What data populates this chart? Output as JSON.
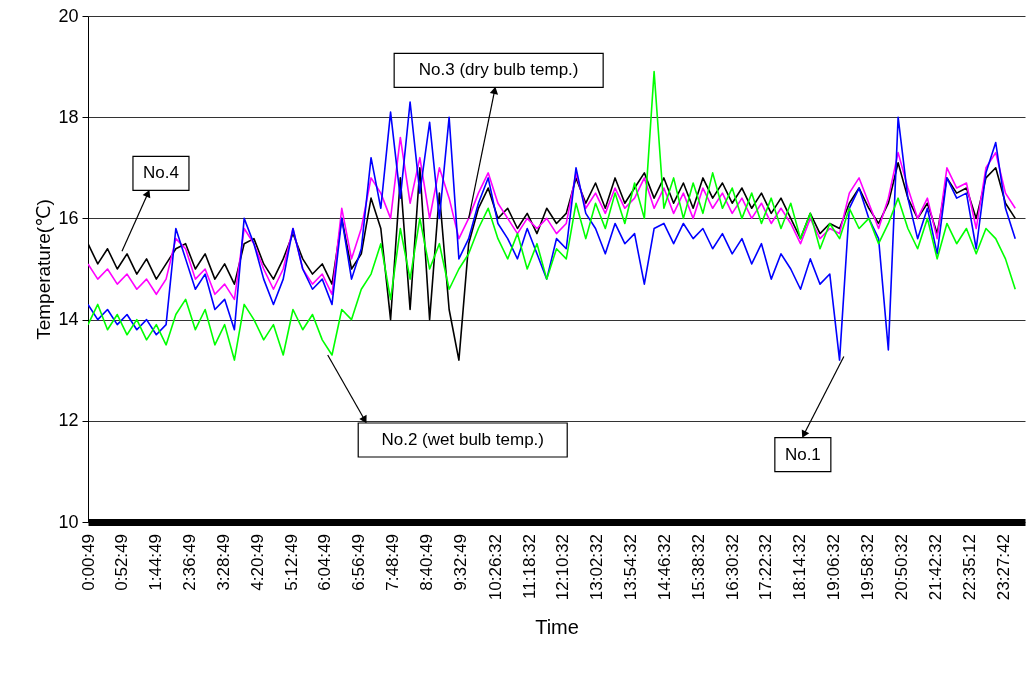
{
  "chart_data": {
    "type": "line",
    "xlabel": "Time",
    "ylabel": "Temperature(℃)",
    "x": [
      0,
      0.25,
      0.5,
      0.75,
      1,
      1.25,
      1.5,
      1.75,
      2,
      2.25,
      2.5,
      2.75,
      3,
      3.25,
      3.5,
      3.75,
      4,
      4.25,
      4.5,
      4.75,
      5,
      5.25,
      5.5,
      5.75,
      6,
      6.25,
      6.5,
      6.75,
      7,
      7.25,
      7.5,
      7.75,
      8,
      8.25,
      8.5,
      8.75,
      9,
      9.25,
      9.5,
      9.75,
      10,
      10.25,
      10.5,
      10.75,
      11,
      11.25,
      11.5,
      11.75,
      12,
      12.25,
      12.5,
      12.75,
      13,
      13.25,
      13.5,
      13.75,
      14,
      14.25,
      14.5,
      14.75,
      15,
      15.25,
      15.5,
      15.75,
      16,
      16.25,
      16.5,
      16.75,
      17,
      17.25,
      17.5,
      17.75,
      18,
      18.25,
      18.5,
      18.75,
      19,
      19.25,
      19.5,
      19.75,
      20,
      20.25,
      20.5,
      20.75,
      21,
      21.25,
      21.5,
      21.75,
      22,
      22.25,
      22.5,
      22.75,
      23,
      23.25,
      23.5,
      23.75
    ],
    "series": [
      {
        "color": "#000000",
        "values": [
          15.5,
          15.1,
          15.4,
          15.0,
          15.3,
          14.9,
          15.2,
          14.8,
          15.1,
          15.4,
          15.5,
          15.0,
          15.3,
          14.8,
          15.1,
          14.7,
          15.5,
          15.6,
          15.1,
          14.8,
          15.2,
          15.7,
          15.2,
          14.9,
          15.1,
          14.7,
          16.0,
          15.0,
          15.3,
          16.4,
          15.8,
          14.0,
          16.8,
          14.2,
          17.0,
          14.0,
          16.5,
          14.2,
          13.2,
          15.5,
          16.2,
          16.6,
          16.0,
          16.2,
          15.8,
          16.1,
          15.7,
          16.2,
          15.9,
          16.1,
          16.8,
          16.3,
          16.7,
          16.2,
          16.8,
          16.3,
          16.6,
          16.9,
          16.4,
          16.8,
          16.3,
          16.7,
          16.2,
          16.8,
          16.4,
          16.7,
          16.3,
          16.6,
          16.2,
          16.5,
          16.1,
          16.4,
          16.0,
          15.6,
          16.1,
          15.7,
          15.9,
          15.8,
          16.3,
          16.6,
          16.2,
          15.9,
          16.3,
          17.1,
          16.4,
          16.0,
          16.3,
          15.7,
          16.8,
          16.5,
          16.6,
          16.0,
          16.8,
          17.0,
          16.3,
          16.0
        ]
      },
      {
        "color": "#ff00ff",
        "values": [
          15.1,
          14.8,
          15.0,
          14.7,
          14.9,
          14.6,
          14.8,
          14.5,
          14.8,
          15.6,
          15.4,
          14.8,
          15.0,
          14.5,
          14.7,
          14.4,
          15.8,
          15.5,
          15.0,
          14.6,
          15.0,
          15.8,
          15.0,
          14.7,
          14.9,
          14.5,
          16.2,
          15.2,
          15.8,
          16.8,
          16.5,
          16.0,
          17.6,
          16.3,
          17.2,
          16.0,
          17.0,
          16.4,
          15.6,
          16.0,
          16.5,
          16.9,
          16.3,
          16.0,
          15.7,
          16.0,
          15.8,
          16.0,
          15.7,
          15.9,
          16.9,
          16.2,
          16.5,
          16.1,
          16.6,
          16.2,
          16.4,
          16.8,
          16.2,
          16.6,
          16.1,
          16.5,
          16.0,
          16.6,
          16.2,
          16.5,
          16.1,
          16.4,
          16.0,
          16.3,
          15.9,
          16.2,
          15.9,
          15.5,
          16.0,
          15.6,
          15.8,
          15.7,
          16.5,
          16.8,
          16.3,
          15.8,
          16.4,
          17.3,
          16.6,
          16.0,
          16.4,
          15.6,
          17.0,
          16.6,
          16.7,
          15.8,
          17.0,
          17.3,
          16.5,
          16.2
        ]
      },
      {
        "color": "#0000ff",
        "values": [
          14.3,
          14.0,
          14.2,
          13.9,
          14.1,
          13.8,
          14.0,
          13.7,
          13.9,
          15.8,
          15.2,
          14.6,
          14.9,
          14.2,
          14.4,
          13.8,
          16.0,
          15.5,
          14.8,
          14.3,
          14.8,
          15.8,
          15.0,
          14.6,
          14.8,
          14.3,
          16.0,
          14.8,
          15.4,
          17.2,
          16.2,
          18.1,
          16.4,
          18.3,
          16.5,
          17.9,
          16.0,
          18.0,
          15.2,
          15.6,
          16.3,
          16.8,
          15.9,
          15.6,
          15.2,
          15.8,
          15.3,
          14.8,
          15.6,
          15.4,
          17.0,
          16.1,
          15.8,
          15.3,
          15.9,
          15.5,
          15.7,
          14.7,
          15.8,
          15.9,
          15.5,
          15.9,
          15.6,
          15.8,
          15.4,
          15.7,
          15.3,
          15.6,
          15.1,
          15.5,
          14.8,
          15.3,
          15.0,
          14.6,
          15.2,
          14.7,
          14.9,
          13.2,
          16.2,
          16.6,
          16.0,
          15.6,
          13.4,
          18.0,
          16.4,
          15.6,
          16.2,
          15.3,
          16.8,
          16.4,
          16.5,
          15.4,
          16.9,
          17.5,
          16.2,
          15.6
        ]
      },
      {
        "color": "#00ff00",
        "values": [
          13.9,
          14.3,
          13.8,
          14.1,
          13.7,
          14.0,
          13.6,
          13.9,
          13.5,
          14.1,
          14.4,
          13.8,
          14.2,
          13.5,
          13.9,
          13.2,
          14.3,
          14.0,
          13.6,
          13.9,
          13.3,
          14.2,
          13.8,
          14.1,
          13.6,
          13.3,
          14.2,
          14.0,
          14.6,
          14.9,
          15.5,
          14.4,
          15.8,
          14.8,
          16.0,
          15.0,
          15.5,
          14.6,
          15.0,
          15.3,
          15.8,
          16.2,
          15.6,
          15.2,
          15.7,
          15.0,
          15.5,
          14.8,
          15.4,
          15.2,
          16.3,
          15.6,
          16.3,
          15.8,
          16.5,
          15.9,
          16.7,
          16.0,
          18.9,
          16.2,
          16.8,
          16.0,
          16.7,
          16.1,
          16.9,
          16.2,
          16.6,
          16.0,
          16.5,
          15.9,
          16.4,
          15.8,
          16.3,
          15.6,
          16.1,
          15.4,
          15.9,
          15.6,
          16.2,
          15.8,
          16.0,
          15.5,
          15.9,
          16.4,
          15.8,
          15.4,
          16.0,
          15.2,
          15.9,
          15.5,
          15.8,
          15.3,
          15.8,
          15.6,
          15.2,
          14.6
        ]
      }
    ],
    "xlim": [
      0,
      24
    ],
    "ylim": [
      10,
      20
    ],
    "yticks": [
      10,
      12,
      14,
      16,
      18,
      20
    ],
    "xticks": [
      {
        "value": 0.0136,
        "label": "0:00:49"
      },
      {
        "value": 0.8803,
        "label": "0:52:49"
      },
      {
        "value": 1.7469,
        "label": "1:44:49"
      },
      {
        "value": 2.6136,
        "label": "2:36:49"
      },
      {
        "value": 3.4803,
        "label": "3:28:49"
      },
      {
        "value": 4.3469,
        "label": "4:20:49"
      },
      {
        "value": 5.2136,
        "label": "5:12:49"
      },
      {
        "value": 6.0803,
        "label": "6:04:49"
      },
      {
        "value": 6.9469,
        "label": "6:56:49"
      },
      {
        "value": 7.8136,
        "label": "7:48:49"
      },
      {
        "value": 8.6803,
        "label": "8:40:49"
      },
      {
        "value": 9.5469,
        "label": "9:32:49"
      },
      {
        "value": 10.4422,
        "label": "10:26:32"
      },
      {
        "value": 11.3089,
        "label": "11:18:32"
      },
      {
        "value": 12.1756,
        "label": "12:10:32"
      },
      {
        "value": 13.0422,
        "label": "13:02:32"
      },
      {
        "value": 13.9089,
        "label": "13:54:32"
      },
      {
        "value": 14.7756,
        "label": "14:46:32"
      },
      {
        "value": 15.6422,
        "label": "15:38:32"
      },
      {
        "value": 16.5089,
        "label": "16:30:32"
      },
      {
        "value": 17.3756,
        "label": "17:22:32"
      },
      {
        "value": 18.2422,
        "label": "18:14:32"
      },
      {
        "value": 19.1089,
        "label": "19:06:32"
      },
      {
        "value": 19.9756,
        "label": "19:58:32"
      },
      {
        "value": 20.8422,
        "label": "20:50:32"
      },
      {
        "value": 21.7089,
        "label": "21:42:32"
      },
      {
        "value": 22.5867,
        "label": "22:35:12"
      },
      {
        "value": 23.4617,
        "label": "23:27:42"
      }
    ],
    "grid": "y",
    "marker": "none",
    "line_style": "solid",
    "annotations": [
      {
        "text": "No.4",
        "x": 0.87,
        "y": 15.35
      },
      {
        "text": "No.3 (dry bulb temp.)",
        "x": 9.75,
        "y": 16.0
      },
      {
        "text": "No.2 (wet bulb temp.)",
        "x": 6.14,
        "y": 13.3
      },
      {
        "text": "No.1",
        "x": 19.36,
        "y": 13.27
      }
    ]
  }
}
